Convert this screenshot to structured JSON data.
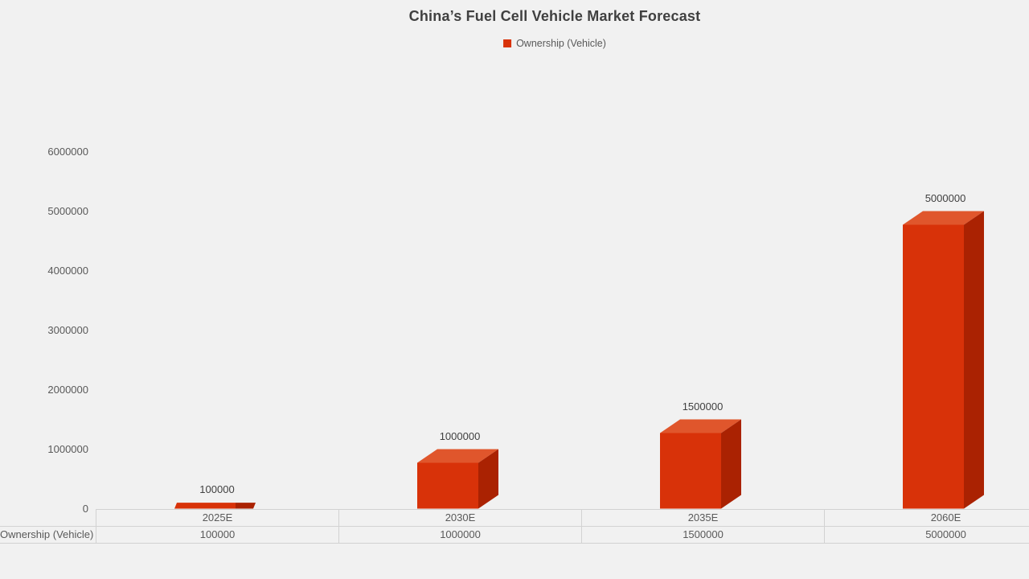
{
  "chart_data": {
    "type": "bar",
    "style": "3d-column",
    "title": "China’s Fuel Cell Vehicle Market Forecast",
    "categories": [
      "2025E",
      "2030E",
      "2035E",
      "2060E"
    ],
    "series": [
      {
        "name": "Ownership (Vehicle)",
        "values": [
          100000,
          1000000,
          1500000,
          5000000
        ],
        "data_labels": [
          "100000",
          "1000000",
          "1500000",
          "5000000"
        ]
      }
    ],
    "ylim": [
      0,
      6000000
    ],
    "ytick_step": 1000000,
    "ytick_labels": [
      "0",
      "1000000",
      "2000000",
      "3000000",
      "4000000",
      "5000000",
      "6000000"
    ],
    "grid": false,
    "legend_position": "top",
    "data_table": {
      "show": true,
      "row_header": "Ownership (Vehicle)"
    },
    "colors": {
      "bar_front": "#d83209",
      "bar_top": "#e0562c",
      "bar_side": "#aa2202",
      "legend_swatch": "#d83209",
      "title_text": "#404040",
      "axis_text": "#595959",
      "background": "#f1f1f1",
      "table_border": "#d2d2d2"
    }
  }
}
